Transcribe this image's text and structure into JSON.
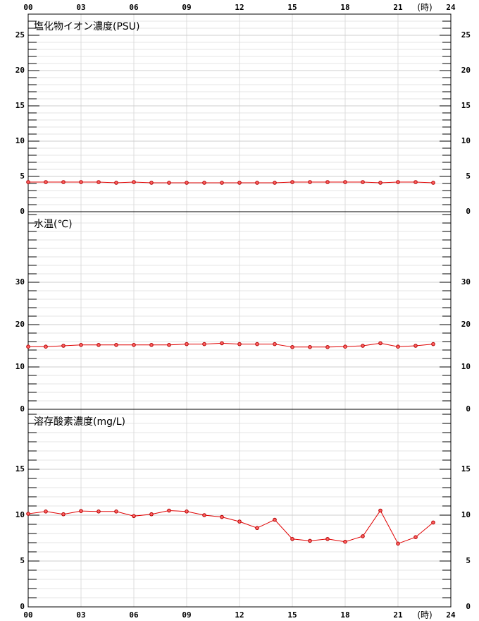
{
  "chart_data": [
    {
      "type": "line",
      "title": "塩化物イオン濃度(PSU)",
      "xlabel": "(時)",
      "x": [
        0,
        1,
        2,
        3,
        4,
        5,
        6,
        7,
        8,
        9,
        10,
        11,
        12,
        13,
        14,
        15,
        16,
        17,
        18,
        19,
        20,
        21,
        22,
        23
      ],
      "xlim": [
        0,
        24
      ],
      "xticks": [
        {
          "value": 0,
          "label": "00"
        },
        {
          "value": 3,
          "label": "03"
        },
        {
          "value": 6,
          "label": "06"
        },
        {
          "value": 9,
          "label": "09"
        },
        12,
        15,
        18,
        21,
        24
      ],
      "series": [
        {
          "color": "#e00000",
          "values": [
            4.2,
            4.2,
            4.2,
            4.2,
            4.2,
            4.1,
            4.2,
            4.1,
            4.1,
            4.1,
            4.1,
            4.1,
            4.1,
            4.1,
            4.1,
            4.2,
            4.2,
            4.2,
            4.2,
            4.2,
            4.1,
            4.2,
            4.2,
            4.1
          ]
        }
      ],
      "ylim": [
        0,
        28
      ],
      "yticks": [
        0,
        5,
        10,
        15,
        20,
        25
      ],
      "grid": true
    },
    {
      "type": "line",
      "title": "水温(℃)",
      "x": [
        0,
        1,
        2,
        3,
        4,
        5,
        6,
        7,
        8,
        9,
        10,
        11,
        12,
        13,
        14,
        15,
        16,
        17,
        18,
        19,
        20,
        21,
        22,
        23
      ],
      "xlim": [
        0,
        24
      ],
      "xticks": [
        {
          "value": 0,
          "label": "00"
        },
        {
          "value": 3,
          "label": "03"
        },
        {
          "value": 6,
          "label": "06"
        },
        {
          "value": 9,
          "label": "09"
        },
        12,
        15,
        18,
        21,
        24
      ],
      "series": [
        {
          "color": "#e00000",
          "values": [
            14.8,
            14.8,
            15,
            15.2,
            15.2,
            15.2,
            15.2,
            15.2,
            15.2,
            15.4,
            15.4,
            15.6,
            15.4,
            15.4,
            15.4,
            14.7,
            14.7,
            14.7,
            14.8,
            15,
            15.6,
            14.8,
            15,
            15.4
          ]
        }
      ],
      "ylim": [
        0,
        46.67
      ],
      "yticks": [
        0,
        10,
        20,
        30
      ],
      "grid": true
    },
    {
      "type": "line",
      "title": "溶存酸素濃度(mg/L)",
      "xlabel": "(時)",
      "x": [
        0,
        1,
        2,
        3,
        4,
        5,
        6,
        7,
        8,
        9,
        10,
        11,
        12,
        13,
        14,
        15,
        16,
        17,
        18,
        19,
        20,
        21,
        22,
        23
      ],
      "xlim": [
        0,
        24
      ],
      "xticks": [
        {
          "value": 0,
          "label": "00"
        },
        {
          "value": 3,
          "label": "03"
        },
        {
          "value": 6,
          "label": "06"
        },
        {
          "value": 9,
          "label": "09"
        },
        12,
        15,
        18,
        21,
        24
      ],
      "series": [
        {
          "color": "#e00000",
          "values": [
            10.15,
            10.4,
            10.1,
            10.45,
            10.4,
            10.4,
            9.9,
            10.1,
            10.5,
            10.4,
            10,
            9.8,
            9.3,
            8.6,
            9.5,
            7.4,
            7.2,
            7.4,
            7.1,
            7.7,
            10.5,
            6.9,
            7.6,
            9.2
          ]
        }
      ],
      "ylim": [
        0,
        21.54
      ],
      "yticks": [
        0,
        5,
        10,
        15
      ],
      "grid": true
    }
  ]
}
